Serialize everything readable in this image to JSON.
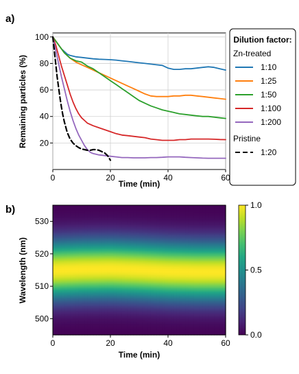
{
  "chart_data": [
    {
      "panel_label": "a)",
      "type": "line",
      "xlabel": "Time (min)",
      "ylabel": "Remaining particles (%)",
      "xlim": [
        0,
        60
      ],
      "ylim": [
        0,
        103
      ],
      "xticks": [
        0,
        20,
        40,
        60
      ],
      "yticks": [
        20,
        40,
        60,
        80,
        100
      ],
      "grid": true,
      "legend": {
        "placement": "right-outside",
        "title": "Dilution factor:",
        "groups": [
          {
            "heading": "Zn-treated",
            "entries": [
              "1:10",
              "1:25",
              "1:50",
              "1:100",
              "1:200"
            ]
          },
          {
            "heading": "Pristine",
            "entries": [
              "1:20"
            ]
          }
        ]
      },
      "series": [
        {
          "name": "1:10",
          "group": "Zn-treated",
          "color": "#1f77b4",
          "style": "solid",
          "x": [
            0,
            1,
            2,
            3,
            4,
            5,
            6,
            8,
            10,
            12,
            14,
            16,
            18,
            20,
            22,
            24,
            26,
            28,
            30,
            32,
            34,
            36,
            38,
            40,
            42,
            44,
            46,
            48,
            50,
            52,
            54,
            56,
            58,
            60
          ],
          "y": [
            100,
            97,
            94,
            91,
            89,
            87,
            86,
            85,
            84.5,
            84,
            83.5,
            83.2,
            83,
            82.8,
            82.5,
            82,
            81.5,
            81,
            80.5,
            80,
            79.5,
            79,
            78.5,
            76.5,
            75.5,
            75.5,
            76,
            76,
            76.5,
            77,
            77.5,
            77,
            76,
            75
          ]
        },
        {
          "name": "1:25",
          "group": "Zn-treated",
          "color": "#ff7f0e",
          "style": "solid",
          "x": [
            0,
            2,
            4,
            6,
            8,
            10,
            12,
            14,
            16,
            18,
            20,
            22,
            24,
            26,
            28,
            30,
            32,
            34,
            36,
            38,
            40,
            42,
            44,
            46,
            48,
            50,
            52,
            54,
            56,
            58,
            60
          ],
          "y": [
            100,
            94,
            88,
            84,
            81,
            79,
            77,
            75,
            73,
            71,
            69,
            67,
            65,
            63,
            61,
            59,
            57,
            55.5,
            55,
            55,
            55,
            55.5,
            55.5,
            56,
            56,
            55.5,
            55,
            54.5,
            54,
            53.5,
            53
          ]
        },
        {
          "name": "1:50",
          "group": "Zn-treated",
          "color": "#2ca02c",
          "style": "solid",
          "x": [
            0,
            2,
            4,
            6,
            8,
            10,
            12,
            14,
            16,
            18,
            20,
            22,
            24,
            26,
            28,
            30,
            32,
            34,
            36,
            38,
            40,
            42,
            44,
            46,
            48,
            50,
            52,
            54,
            56,
            58,
            60
          ],
          "y": [
            100,
            94,
            88,
            84,
            82,
            81,
            78,
            76,
            73,
            70,
            67,
            64,
            61,
            58,
            55,
            52,
            50,
            48,
            46.5,
            45,
            44,
            43,
            42,
            41.5,
            41,
            40.5,
            40,
            40,
            39.5,
            39,
            38.5
          ]
        },
        {
          "name": "1:100",
          "group": "Zn-treated",
          "color": "#d62728",
          "style": "solid",
          "x": [
            0,
            1,
            2,
            3,
            4,
            5,
            6,
            7,
            8,
            9,
            10,
            11,
            12,
            14,
            16,
            18,
            20,
            22,
            24,
            26,
            28,
            30,
            32,
            34,
            36,
            38,
            40,
            42,
            44,
            46,
            48,
            50,
            52,
            54,
            56,
            58,
            60
          ],
          "y": [
            100,
            94,
            86,
            78,
            71,
            64,
            57,
            51,
            46,
            42,
            39,
            37,
            35,
            33,
            31.5,
            30,
            28.5,
            27,
            26,
            25.5,
            25,
            24.5,
            24,
            23,
            22.5,
            22,
            22,
            22,
            22.5,
            22.5,
            23,
            23,
            23,
            23,
            22.8,
            22.6,
            22.5
          ]
        },
        {
          "name": "1:200",
          "group": "Zn-treated",
          "color": "#9467bd",
          "style": "solid",
          "x": [
            0,
            1,
            2,
            3,
            4,
            5,
            6,
            7,
            8,
            9,
            10,
            11,
            12,
            13,
            14,
            16,
            18,
            20,
            22,
            24,
            26,
            28,
            30,
            32,
            34,
            36,
            38,
            40,
            42,
            44,
            46,
            48,
            50,
            52,
            54,
            56,
            58,
            60
          ],
          "y": [
            100,
            90,
            80,
            70,
            61,
            52,
            44,
            37,
            31,
            26,
            22,
            18,
            15,
            13,
            12,
            11,
            10.5,
            10,
            9.5,
            9,
            9,
            8.8,
            8.8,
            8.8,
            9,
            9,
            9.2,
            9.5,
            9.5,
            9.5,
            9.2,
            9,
            8.8,
            8.6,
            8.5,
            8.5,
            8.5,
            8.5
          ]
        },
        {
          "name": "1:20",
          "group": "Pristine",
          "color": "#000000",
          "style": "dashed",
          "x": [
            0,
            0.5,
            1,
            1.5,
            2,
            2.5,
            3,
            3.5,
            4,
            5,
            6,
            7,
            8,
            9,
            10,
            11,
            12,
            13,
            14,
            15,
            16,
            17,
            18,
            19,
            20
          ],
          "y": [
            100,
            90,
            80,
            70,
            62,
            54,
            47,
            41,
            36,
            28,
            23,
            20,
            18,
            16.5,
            15.5,
            15,
            14.5,
            14.5,
            15,
            15,
            14.5,
            13.5,
            12.5,
            10.5,
            7
          ]
        }
      ]
    },
    {
      "panel_label": "b)",
      "type": "heatmap",
      "xlabel": "Time (min)",
      "ylabel": "Wavelength (nm)",
      "xlim": [
        0,
        60
      ],
      "ylim": [
        495,
        535
      ],
      "xticks": [
        0,
        20,
        40,
        60
      ],
      "yticks": [
        500,
        510,
        520,
        530
      ],
      "colormap": "viridis",
      "colorbar": {
        "range": [
          0.0,
          1.0
        ],
        "ticks": [
          "0.0",
          "0.5",
          "1.0"
        ]
      },
      "peak_center_nm": [
        {
          "t": 0,
          "nm": 515.0
        },
        {
          "t": 10,
          "nm": 515.3
        },
        {
          "t": 20,
          "nm": 515.4
        },
        {
          "t": 30,
          "nm": 515.1
        },
        {
          "t": 40,
          "nm": 514.7
        },
        {
          "t": 50,
          "nm": 514.5
        },
        {
          "t": 60,
          "nm": 514.5
        }
      ],
      "peak_width_sigma_nm": 6.2
    }
  ]
}
